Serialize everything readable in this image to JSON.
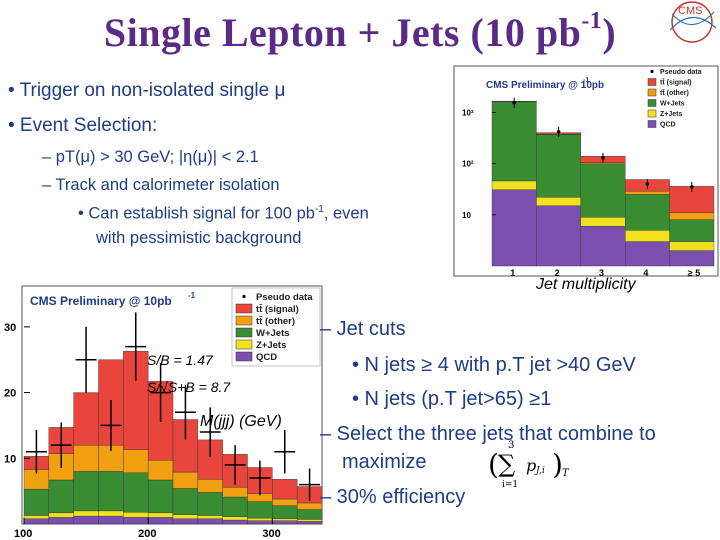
{
  "slide": {
    "title_main": "Single Lepton + Jets (10 pb",
    "title_sup": "-1",
    "title_close": ")",
    "logo_text": "CMS"
  },
  "bullets": {
    "b1": "• Trigger on  non-isolated single μ",
    "b2": "• Event Selection:",
    "s1": "– pT(μ) > 30 GeV;  |η(μ)| < 2.1",
    "s2": "– Track and calorimeter isolation",
    "s3a": "• Can establish signal for 100 pb",
    "s3sup": "-1",
    "s3b": ", even",
    "s4": "with pessimistic background"
  },
  "right_text": {
    "r1": "– Jet cuts",
    "r2": "• N jets ≥ 4 with p.T jet >40 GeV",
    "r3": "• N jets (p.T jet>65) ≥1",
    "r4": "– Select the three jets that  combine to",
    "r5": "maximize",
    "formula_top": "3",
    "formula_sum": "∑",
    "formula_bottom": "i=1",
    "formula_body": "p",
    "formula_sub": "J,i",
    "formula_T": "T",
    "r6": "– 30% efficiency"
  },
  "labels": {
    "jet_mult": "Jet multiplicity",
    "sb": "S/B = 1.47",
    "ssb": "S/√S+B = 8.7",
    "mjjj": "M(jjj) (GeV)"
  },
  "colors": {
    "accent": "#5b2a86",
    "text": "#1f3c88",
    "signal": "#e8453c",
    "other": "#f0a010",
    "wjets": "#3a8c32",
    "zjets": "#f0e020",
    "qcd": "#7a4fb0"
  },
  "chart_data": [
    {
      "type": "bar",
      "title": "CMS Preliminary @ 10pb",
      "title_sup": "-1",
      "xlabel": "Jet multiplicity",
      "ylabel": "",
      "yscale": "log",
      "categories": [
        "1",
        "2",
        "3",
        "4",
        "≥ 5"
      ],
      "ticks_y": [
        "10",
        "10²",
        "10³"
      ],
      "legend": [
        "Pseudo data",
        "tt̄ (signal)",
        "tt̄ (other)",
        "W+Jets",
        "Z+Jets",
        "QCD"
      ],
      "series": [
        {
          "name": "QCD",
          "values": [
            30,
            14,
            5,
            2,
            1
          ]
        },
        {
          "name": "Z+Jets",
          "values": [
            15,
            7,
            3,
            2,
            1
          ]
        },
        {
          "name": "W+Jets",
          "values": [
            1600,
            350,
            90,
            20,
            5
          ]
        },
        {
          "name": "tt̄ (other)",
          "values": [
            5,
            7,
            6,
            4,
            3
          ]
        },
        {
          "name": "tt̄ (signal)",
          "values": [
            10,
            25,
            35,
            20,
            25
          ]
        }
      ],
      "data": [
        1550,
        420,
        130,
        40,
        35
      ]
    },
    {
      "type": "bar",
      "title": "CMS Preliminary @ 10pb",
      "title_sup": "-1",
      "xlabel": "M(jjj) (GeV)",
      "ylabel": "",
      "ylim": [
        0,
        35
      ],
      "ticks_y": [
        "10",
        "20",
        "30"
      ],
      "ticks_x": [
        "100",
        "200",
        "300"
      ],
      "legend": [
        "Pseudo data",
        "tt̄ (signal)",
        "tt̄ (other)",
        "W+Jets",
        "Z+Jets",
        "QCD"
      ],
      "x": [
        110,
        130,
        150,
        170,
        190,
        210,
        230,
        250,
        270,
        290,
        310,
        330
      ],
      "series": [
        {
          "name": "QCD",
          "values": [
            0.8,
            1,
            1.2,
            1.2,
            1,
            1,
            0.8,
            0.8,
            0.6,
            0.5,
            0.5,
            0.4
          ]
        },
        {
          "name": "Z+Jets",
          "values": [
            0.5,
            0.7,
            0.8,
            0.8,
            0.8,
            0.7,
            0.6,
            0.5,
            0.5,
            0.4,
            0.3,
            0.3
          ]
        },
        {
          "name": "W+Jets",
          "values": [
            4,
            5,
            6,
            6,
            6,
            5,
            4,
            3.5,
            3,
            2.5,
            2,
            1.5
          ]
        },
        {
          "name": "tt̄ (other)",
          "values": [
            3,
            4,
            4,
            4,
            3.5,
            3,
            2.5,
            2,
            1.5,
            1.2,
            1,
            1
          ]
        },
        {
          "name": "tt̄ (signal)",
          "values": [
            2,
            4,
            8,
            13,
            15,
            12,
            8,
            6,
            5,
            4,
            3,
            2.5
          ]
        }
      ],
      "data": [
        11,
        12,
        25,
        15,
        27,
        20,
        17,
        14,
        9,
        7,
        11,
        6
      ]
    }
  ]
}
